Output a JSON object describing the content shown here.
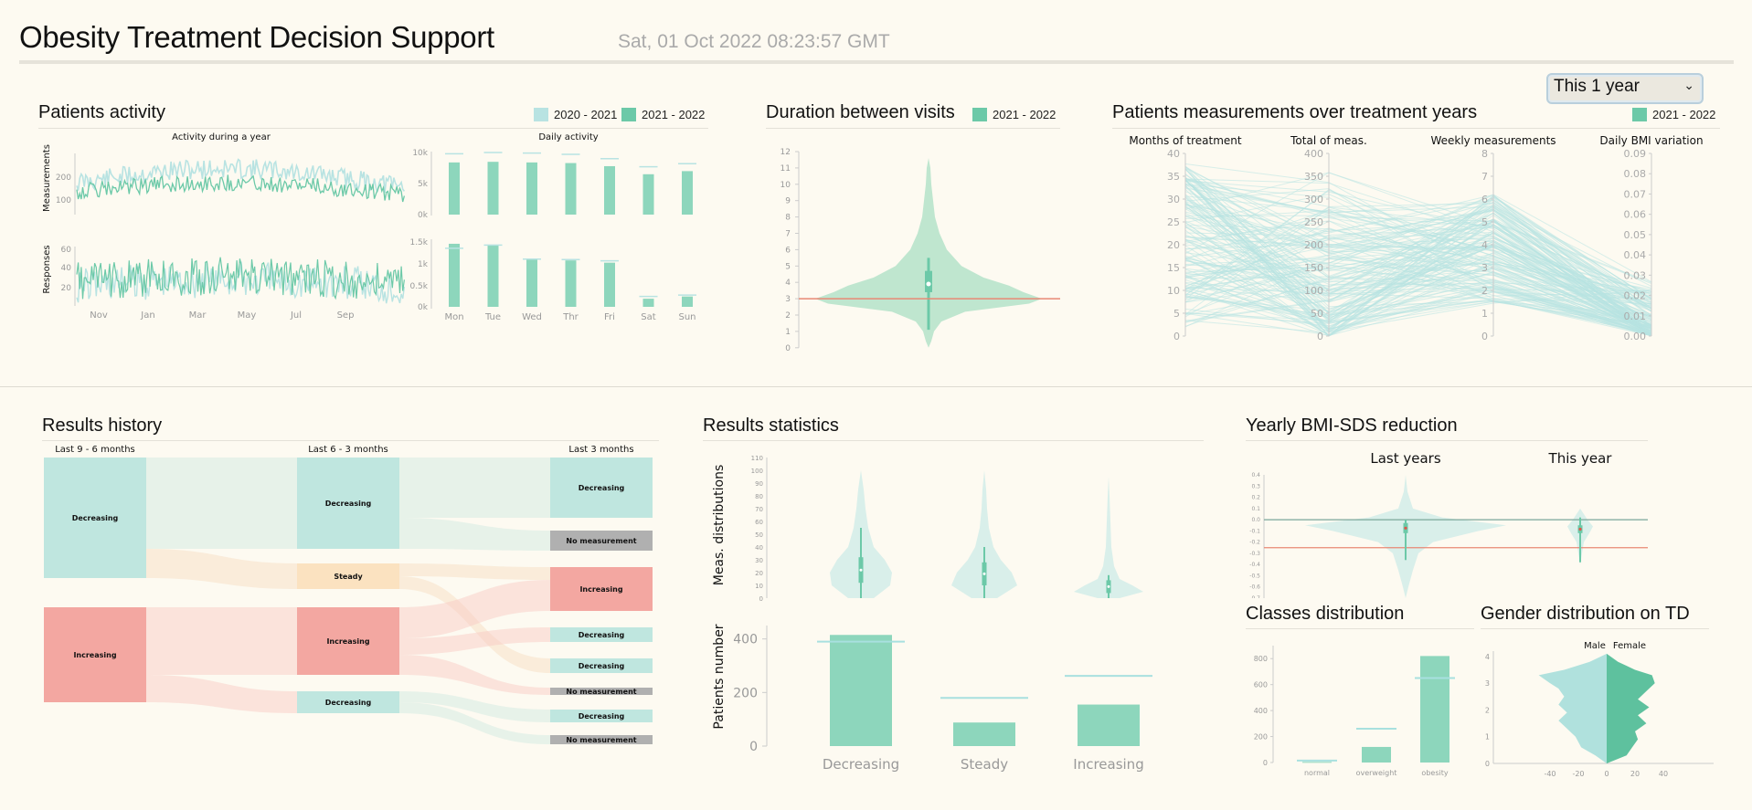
{
  "header": {
    "title": "Obesity Treatment Decision Support",
    "datetime": "Sat, 01 Oct 2022 08:23:57 GMT",
    "range_select": {
      "selected": "This 1 year"
    }
  },
  "colors": {
    "prev": "#b8e3e2",
    "curr": "#6cc9a8",
    "red": "#f3a7a1",
    "orange": "#fbe2c0",
    "gray": "#b0b0b0",
    "teal_light": "#bfe6df"
  },
  "activity": {
    "title": "Patients activity",
    "legend": [
      "2020 - 2021",
      "2021 - 2022"
    ],
    "yearly_title": "Activity during a year",
    "daily_title": "Daily activity",
    "ylabel_top": "Measurements",
    "ylabel_bottom": "Responses",
    "months": [
      "Nov",
      "Jan",
      "Mar",
      "May",
      "Jul",
      "Sep"
    ],
    "meas_ticks": [
      "200",
      "100"
    ],
    "resp_ticks": [
      "60",
      "40",
      "20"
    ],
    "days": [
      "Mon",
      "Tue",
      "Wed",
      "Thr",
      "Fri",
      "Sat",
      "Sun"
    ],
    "daily_meas_ticks": [
      "10k",
      "5k",
      "0k"
    ],
    "daily_resp_ticks": [
      "1.5k",
      "1k",
      "0.5k",
      "0k"
    ],
    "daily_meas": [
      8400,
      8500,
      8400,
      8300,
      7800,
      6500,
      7000
    ],
    "daily_meas_prev": [
      9800,
      10000,
      9900,
      9700,
      9000,
      7700,
      8200
    ],
    "daily_resp": [
      1400,
      1380,
      1050,
      1030,
      980,
      180,
      230
    ],
    "daily_resp_prev": [
      1300,
      1370,
      1060,
      1050,
      1020,
      230,
      260
    ]
  },
  "visits": {
    "title": "Duration between visits",
    "legend": "2021 - 2022",
    "ticks": [
      "12",
      "11",
      "10",
      "9",
      "8",
      "7",
      "6",
      "5",
      "4",
      "3",
      "2",
      "1",
      "0"
    ]
  },
  "measurements": {
    "title": "Patients measurements over treatment years",
    "legend": "2021 - 2022",
    "axes": [
      {
        "name": "Months of treatment",
        "ticks": [
          "40",
          "35",
          "30",
          "25",
          "20",
          "15",
          "10",
          "5",
          "0"
        ]
      },
      {
        "name": "Total of meas.",
        "ticks": [
          "400",
          "350",
          "300",
          "250",
          "200",
          "150",
          "100",
          "50",
          "0"
        ]
      },
      {
        "name": "Weekly measurements",
        "ticks": [
          "8",
          "7",
          "6",
          "5",
          "4",
          "3",
          "2",
          "1",
          "0"
        ]
      },
      {
        "name": "Daily BMI variation",
        "ticks": [
          "0.09",
          "0.08",
          "0.07",
          "0.06",
          "0.05",
          "0.04",
          "0.03",
          "0.02",
          "0.01",
          "0.00"
        ]
      }
    ]
  },
  "history": {
    "title": "Results history",
    "columns": [
      "Last 9 - 6 months",
      "Last 6 - 3 months",
      "Last 3 months"
    ],
    "nodes": {
      "c0_decreasing": "Decreasing",
      "c0_increasing": "Increasing",
      "c1_decreasing": "Decreasing",
      "c1_steady": "Steady",
      "c1_increasing": "Increasing",
      "c1_decreasing2": "Decreasing",
      "c2_decreasing": "Decreasing",
      "c2_nomeas1": "No measurement",
      "c2_increasing": "Increasing",
      "c2_decreasing2": "Decreasing",
      "c2_decreasing3": "Decreasing",
      "c2_nomeas2": "No measurement",
      "c2_decreasing4": "Decreasing",
      "c2_nomeas3": "No measurement"
    }
  },
  "stats": {
    "title": "Results statistics",
    "ylabel_top": "Meas. distributions",
    "ylabel_bottom": "Patients number",
    "violin_ticks": [
      "110",
      "100",
      "90",
      "80",
      "70",
      "60",
      "50",
      "40",
      "30",
      "20",
      "10",
      "0"
    ],
    "bar_ticks": [
      "400",
      "200",
      "0"
    ],
    "categories": [
      "Decreasing",
      "Steady",
      "Increasing"
    ],
    "values": [
      415,
      88,
      155
    ],
    "prev_values": [
      390,
      180,
      262
    ]
  },
  "bmi": {
    "title": "Yearly BMI-SDS reduction",
    "labels": [
      "Last years",
      "This year"
    ],
    "ticks": [
      "0.4",
      "0.3",
      "0.2",
      "0.1",
      "0.0",
      "-0.1",
      "-0.2",
      "-0.3",
      "-0.4",
      "-0.5",
      "-0.6",
      "-0.7"
    ]
  },
  "classes": {
    "title": "Classes distribution",
    "categories": [
      "normal",
      "overweight",
      "obesity"
    ],
    "ticks": [
      "800",
      "600",
      "400",
      "200",
      "0"
    ],
    "values": [
      5,
      120,
      820
    ],
    "prev_values": [
      15,
      260,
      650
    ]
  },
  "gender": {
    "title": "Gender distribution on TD",
    "legend": [
      "Male",
      "Female"
    ],
    "yticks": [
      "4",
      "3",
      "2",
      "1",
      "0"
    ],
    "xticks": [
      "-40",
      "-20",
      "0",
      "20",
      "40"
    ]
  }
}
